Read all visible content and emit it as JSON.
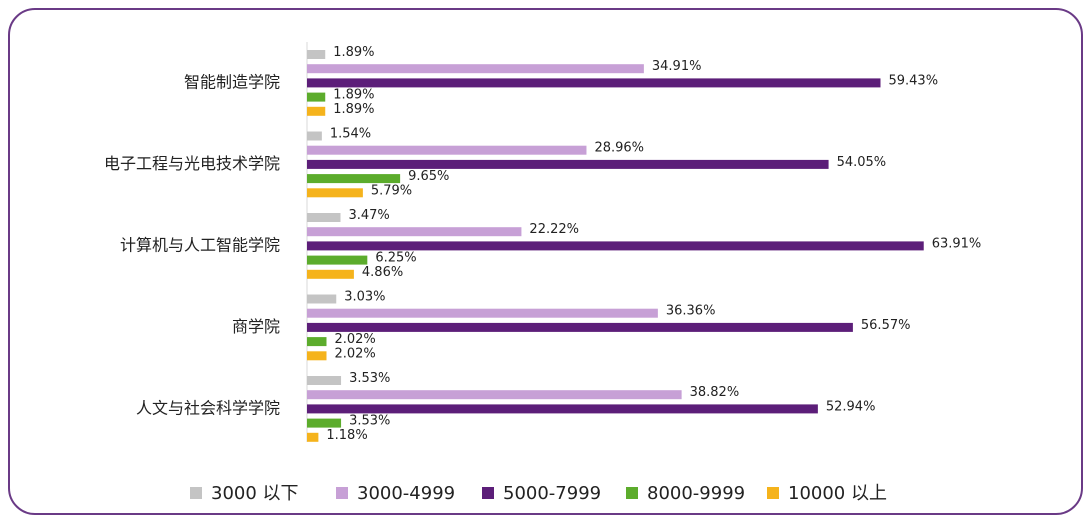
{
  "chart_data": {
    "type": "bar",
    "orientation": "horizontal",
    "categories": [
      "智能制造学院",
      "电子工程与光电技术学院",
      "计算机与人工智能学院",
      "商学院",
      "人文与社会科学学院"
    ],
    "series": [
      {
        "name": "3000 以下",
        "color": "#c4c4c4",
        "values": [
          1.89,
          1.54,
          3.47,
          3.03,
          3.53
        ],
        "value_labels": [
          "1.89%",
          "1.54%",
          "3.47%",
          "3.03%",
          "3.53%"
        ]
      },
      {
        "name": "3000-4999",
        "color": "#c7a0d6",
        "values": [
          34.91,
          28.96,
          22.22,
          36.36,
          38.82
        ],
        "value_labels": [
          "34.91%",
          "28.96%",
          "22.22%",
          "36.36%",
          "38.82%"
        ]
      },
      {
        "name": "5000-7999",
        "color": "#5c1e79",
        "values": [
          59.43,
          54.05,
          63.91,
          56.57,
          52.94
        ],
        "value_labels": [
          "59.43%",
          "54.05%",
          "63.91%",
          "56.57%",
          "52.94%"
        ]
      },
      {
        "name": "8000-9999",
        "color": "#5cac2c",
        "values": [
          1.89,
          9.65,
          6.25,
          2.02,
          3.53
        ],
        "value_labels": [
          "1.89%",
          "9.65%",
          "6.25%",
          "2.02%",
          "3.53%"
        ]
      },
      {
        "name": "10000 以上",
        "color": "#f5b31c",
        "values": [
          1.89,
          5.79,
          4.86,
          2.02,
          1.18
        ],
        "value_labels": [
          "1.89%",
          "5.79%",
          "4.86%",
          "2.02%",
          "1.18%"
        ]
      }
    ],
    "legend": "bottom"
  }
}
